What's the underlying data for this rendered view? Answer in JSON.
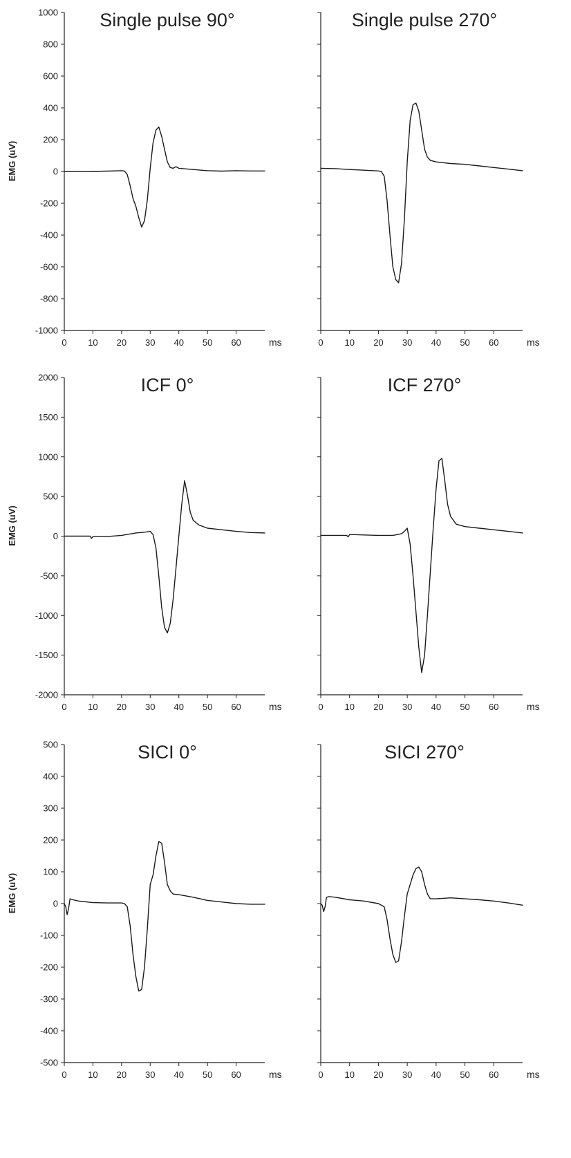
{
  "colors": {
    "trace": "#1a1a1a",
    "axis": "#222222",
    "text": "#222222",
    "background": "#ffffff"
  },
  "chart_data": [
    {
      "type": "line",
      "title": "Single pulse 90°",
      "ylabel": "EMG (uV)",
      "x_unit": "ms",
      "xlim": [
        0,
        70
      ],
      "ylim": [
        -1000,
        1000
      ],
      "x_ticks": [
        0,
        10,
        20,
        30,
        40,
        50,
        60
      ],
      "y_ticks": [
        1000,
        800,
        600,
        400,
        200,
        0,
        -200,
        -400,
        -600,
        -800,
        -1000
      ],
      "grid": false,
      "x": [
        0,
        5,
        10,
        15,
        20,
        21,
        22,
        23,
        24,
        25,
        26,
        27,
        28,
        29,
        30,
        31,
        32,
        33,
        34,
        35,
        36,
        37,
        38,
        39,
        40,
        45,
        50,
        55,
        60,
        65,
        70
      ],
      "y": [
        0,
        -1,
        0,
        2,
        5,
        3,
        -20,
        -90,
        -170,
        -220,
        -290,
        -350,
        -310,
        -180,
        20,
        180,
        260,
        280,
        220,
        140,
        60,
        25,
        20,
        30,
        20,
        12,
        5,
        2,
        5,
        3,
        3
      ]
    },
    {
      "type": "line",
      "title": "Single pulse 270°",
      "ylabel": "",
      "x_unit": "ms",
      "xlim": [
        0,
        70
      ],
      "ylim": [
        -1000,
        1000
      ],
      "x_ticks": [
        0,
        10,
        20,
        30,
        40,
        50,
        60
      ],
      "y_ticks": [
        1000,
        800,
        600,
        400,
        200,
        0,
        -200,
        -400,
        -600,
        -800,
        -1000
      ],
      "grid": false,
      "x": [
        0,
        5,
        10,
        15,
        20,
        21,
        22,
        23,
        24,
        25,
        26,
        27,
        28,
        29,
        30,
        31,
        32,
        33,
        34,
        35,
        36,
        37,
        38,
        40,
        45,
        50,
        55,
        60,
        65,
        70
      ],
      "y": [
        20,
        18,
        12,
        8,
        3,
        0,
        -30,
        -180,
        -400,
        -600,
        -680,
        -700,
        -580,
        -300,
        60,
        320,
        420,
        430,
        380,
        260,
        140,
        90,
        70,
        60,
        50,
        45,
        35,
        25,
        15,
        5
      ]
    },
    {
      "type": "line",
      "title": "ICF 0°",
      "ylabel": "EMG (uV)",
      "x_unit": "ms",
      "xlim": [
        0,
        70
      ],
      "ylim": [
        -2000,
        2000
      ],
      "x_ticks": [
        0,
        10,
        20,
        30,
        40,
        50,
        60
      ],
      "y_ticks": [
        2000,
        1500,
        1000,
        500,
        0,
        -500,
        -1000,
        -1500,
        -2000
      ],
      "grid": false,
      "x": [
        0,
        5,
        9,
        9.5,
        10,
        11,
        15,
        20,
        25,
        28,
        30,
        31,
        32,
        33,
        34,
        35,
        36,
        37,
        38,
        39,
        40,
        41,
        42,
        43,
        44,
        45,
        47,
        50,
        55,
        60,
        65,
        70
      ],
      "y": [
        0,
        0,
        0,
        -30,
        -5,
        -5,
        -5,
        10,
        40,
        50,
        60,
        20,
        -150,
        -500,
        -900,
        -1150,
        -1220,
        -1100,
        -800,
        -400,
        0,
        400,
        700,
        520,
        300,
        200,
        140,
        100,
        80,
        60,
        45,
        40
      ]
    },
    {
      "type": "line",
      "title": "ICF 270°",
      "ylabel": "",
      "x_unit": "ms",
      "xlim": [
        0,
        70
      ],
      "ylim": [
        -2000,
        2000
      ],
      "x_ticks": [
        0,
        10,
        20,
        30,
        40,
        50,
        60
      ],
      "y_ticks": [
        2000,
        1500,
        1000,
        500,
        0,
        -500,
        -1000,
        -1500,
        -2000
      ],
      "grid": false,
      "x": [
        0,
        5,
        9,
        9.5,
        10,
        11,
        15,
        20,
        25,
        28,
        29,
        30,
        31,
        32,
        33,
        34,
        35,
        36,
        37,
        38,
        39,
        40,
        41,
        42,
        43,
        44,
        45,
        47,
        50,
        55,
        60,
        65,
        70
      ],
      "y": [
        10,
        10,
        10,
        -10,
        20,
        20,
        15,
        10,
        10,
        30,
        60,
        100,
        -100,
        -500,
        -950,
        -1400,
        -1720,
        -1500,
        -1000,
        -450,
        100,
        600,
        950,
        980,
        700,
        400,
        250,
        150,
        120,
        100,
        80,
        60,
        40
      ]
    },
    {
      "type": "line",
      "title": "SICI 0°",
      "ylabel": "EMG (uV)",
      "x_unit": "ms",
      "xlim": [
        0,
        70
      ],
      "ylim": [
        -500,
        500
      ],
      "x_ticks": [
        0,
        10,
        20,
        30,
        40,
        50,
        60
      ],
      "y_ticks": [
        500,
        400,
        300,
        200,
        100,
        0,
        -100,
        -200,
        -300,
        -400,
        -500
      ],
      "grid": false,
      "x": [
        0,
        0.5,
        1,
        1.5,
        2,
        3,
        5,
        10,
        15,
        20,
        21,
        22,
        23,
        24,
        25,
        26,
        27,
        28,
        29,
        30,
        31,
        32,
        33,
        34,
        35,
        36,
        37,
        38,
        40,
        45,
        50,
        55,
        60,
        65,
        70
      ],
      "y": [
        0,
        -10,
        -35,
        -15,
        15,
        12,
        8,
        3,
        2,
        2,
        0,
        -10,
        -70,
        -160,
        -230,
        -275,
        -270,
        -200,
        -80,
        60,
        90,
        150,
        195,
        190,
        130,
        60,
        40,
        30,
        28,
        20,
        10,
        5,
        0,
        -2,
        -2
      ]
    },
    {
      "type": "line",
      "title": "SICI 270°",
      "ylabel": "",
      "x_unit": "ms",
      "xlim": [
        0,
        70
      ],
      "ylim": [
        -500,
        500
      ],
      "x_ticks": [
        0,
        10,
        20,
        30,
        40,
        50,
        60
      ],
      "y_ticks": [
        500,
        400,
        300,
        200,
        100,
        0,
        -100,
        -200,
        -300,
        -400,
        -500
      ],
      "grid": false,
      "x": [
        0,
        0.5,
        1,
        1.5,
        2,
        3,
        5,
        10,
        15,
        20,
        22,
        23,
        24,
        25,
        26,
        27,
        28,
        29,
        30,
        31,
        32,
        33,
        34,
        35,
        36,
        37,
        38,
        40,
        45,
        50,
        55,
        60,
        65,
        70
      ],
      "y": [
        0,
        -5,
        -25,
        -10,
        20,
        22,
        20,
        12,
        8,
        0,
        -10,
        -50,
        -110,
        -160,
        -185,
        -180,
        -120,
        -40,
        30,
        60,
        90,
        110,
        115,
        100,
        60,
        30,
        15,
        15,
        18,
        15,
        12,
        8,
        2,
        -5
      ]
    }
  ]
}
